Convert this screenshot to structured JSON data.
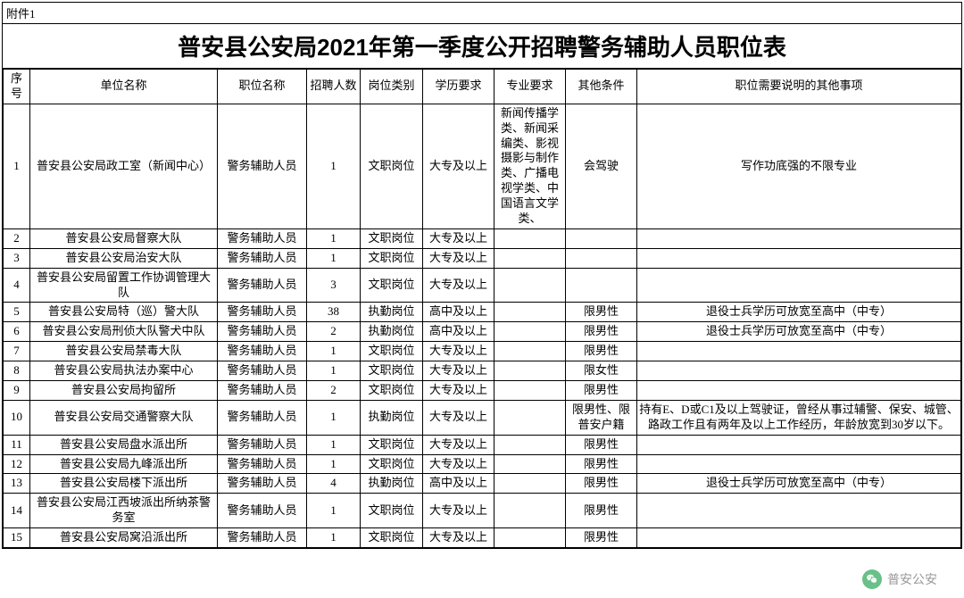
{
  "attachment_label": "附件1",
  "title": "普安县公安局2021年第一季度公开招聘警务辅助人员职位表",
  "headers": {
    "seq": "序号",
    "unit": "单位名称",
    "position": "职位名称",
    "count": "招聘人数",
    "type": "岗位类别",
    "education": "学历要求",
    "major": "专业要求",
    "other": "其他条件",
    "notes": "职位需要说明的其他事项"
  },
  "rows": [
    {
      "seq": "1",
      "unit": "普安县公安局政工室（新闻中心）",
      "position": "警务辅助人员",
      "count": "1",
      "type": "文职岗位",
      "education": "大专及以上",
      "major": "新闻传播学类、新闻采编类、影视摄影与制作类、广播电视学类、中国语言文学类、",
      "other": "会驾驶",
      "notes": "写作功底强的不限专业"
    },
    {
      "seq": "2",
      "unit": "普安县公安局督察大队",
      "position": "警务辅助人员",
      "count": "1",
      "type": "文职岗位",
      "education": "大专及以上",
      "major": "",
      "other": "",
      "notes": ""
    },
    {
      "seq": "3",
      "unit": "普安县公安局治安大队",
      "position": "警务辅助人员",
      "count": "1",
      "type": "文职岗位",
      "education": "大专及以上",
      "major": "",
      "other": "",
      "notes": ""
    },
    {
      "seq": "4",
      "unit": "普安县公安局留置工作协调管理大队",
      "position": "警务辅助人员",
      "count": "3",
      "type": "文职岗位",
      "education": "大专及以上",
      "major": "",
      "other": "",
      "notes": ""
    },
    {
      "seq": "5",
      "unit": "普安县公安局特（巡）警大队",
      "position": "警务辅助人员",
      "count": "38",
      "type": "执勤岗位",
      "education": "高中及以上",
      "major": "",
      "other": "限男性",
      "notes": "退役士兵学历可放宽至高中（中专）"
    },
    {
      "seq": "6",
      "unit": "普安县公安局刑侦大队警犬中队",
      "position": "警务辅助人员",
      "count": "2",
      "type": "执勤岗位",
      "education": "高中及以上",
      "major": "",
      "other": "限男性",
      "notes": "退役士兵学历可放宽至高中（中专）"
    },
    {
      "seq": "7",
      "unit": "普安县公安局禁毒大队",
      "position": "警务辅助人员",
      "count": "1",
      "type": "文职岗位",
      "education": "大专及以上",
      "major": "",
      "other": "限男性",
      "notes": ""
    },
    {
      "seq": "8",
      "unit": "普安县公安局执法办案中心",
      "position": "警务辅助人员",
      "count": "1",
      "type": "文职岗位",
      "education": "大专及以上",
      "major": "",
      "other": "限女性",
      "notes": ""
    },
    {
      "seq": "9",
      "unit": "普安县公安局拘留所",
      "position": "警务辅助人员",
      "count": "2",
      "type": "文职岗位",
      "education": "大专及以上",
      "major": "",
      "other": "限男性",
      "notes": ""
    },
    {
      "seq": "10",
      "unit": "普安县公安局交通警察大队",
      "position": "警务辅助人员",
      "count": "1",
      "type": "执勤岗位",
      "education": "大专及以上",
      "major": "",
      "other": "限男性、限普安户籍",
      "notes": "持有E、D或C1及以上驾驶证，曾经从事过辅警、保安、城管、路政工作且有两年及以上工作经历，年龄放宽到30岁以下。"
    },
    {
      "seq": "11",
      "unit": "普安县公安局盘水派出所",
      "position": "警务辅助人员",
      "count": "1",
      "type": "文职岗位",
      "education": "大专及以上",
      "major": "",
      "other": "限男性",
      "notes": ""
    },
    {
      "seq": "12",
      "unit": "普安县公安局九峰派出所",
      "position": "警务辅助人员",
      "count": "1",
      "type": "文职岗位",
      "education": "大专及以上",
      "major": "",
      "other": "限男性",
      "notes": ""
    },
    {
      "seq": "13",
      "unit": "普安县公安局楼下派出所",
      "position": "警务辅助人员",
      "count": "4",
      "type": "执勤岗位",
      "education": "高中及以上",
      "major": "",
      "other": "限男性",
      "notes": "退役士兵学历可放宽至高中（中专）"
    },
    {
      "seq": "14",
      "unit": "普安县公安局江西坡派出所纳茶警务室",
      "position": "警务辅助人员",
      "count": "1",
      "type": "文职岗位",
      "education": "大专及以上",
      "major": "",
      "other": "限男性",
      "notes": ""
    },
    {
      "seq": "15",
      "unit": "普安县公安局窝沿派出所",
      "position": "警务辅助人员",
      "count": "1",
      "type": "文职岗位",
      "education": "大专及以上",
      "major": "",
      "other": "限男性",
      "notes": ""
    }
  ],
  "watermark": {
    "text": "普安公安",
    "icon_bg": "#50b674"
  }
}
